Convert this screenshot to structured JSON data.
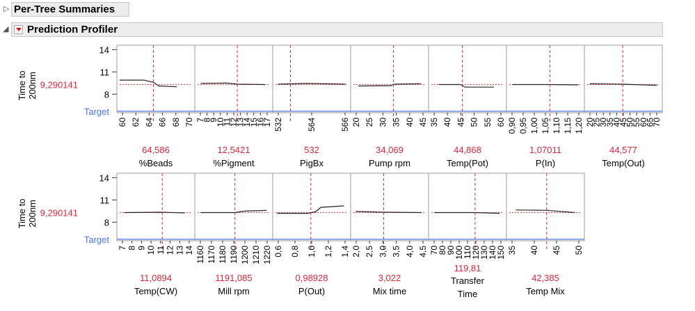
{
  "outlines": {
    "per_tree": {
      "title": "Per-Tree Summaries",
      "state": "collapsed"
    },
    "profiler": {
      "title": "Prediction Profiler",
      "state": "expanded"
    }
  },
  "colors": {
    "red": "#d8253a",
    "target": "#4a73e8",
    "curve": "#222222",
    "frame": "#9a9a9a"
  },
  "response": {
    "label_line1": "Time to",
    "label_line2": "200nm",
    "value": "9,290141",
    "y_ticks": [
      "14",
      "11",
      "8"
    ],
    "y_values": [
      14,
      11,
      8
    ],
    "y_range": [
      5.5,
      14.6
    ],
    "current_y": 9.29,
    "target_label": "Target",
    "target_y": 5.7
  },
  "rows": [
    {
      "factors": [
        {
          "name": "%Beads",
          "value": "64,586",
          "ticks": [
            "60",
            "62",
            "64",
            "66",
            "68",
            "70"
          ],
          "range": [
            59,
            71
          ],
          "current": 64.586,
          "curve": [
            [
              59,
              9.9
            ],
            [
              61.5,
              9.9
            ],
            [
              63,
              9.9
            ],
            [
              64.6,
              9.6
            ],
            [
              65.5,
              9.1
            ],
            [
              68.5,
              9.0
            ]
          ]
        },
        {
          "name": "%Pigment",
          "value": "12,5421",
          "ticks": [
            "7",
            "8",
            "9",
            "10",
            "11",
            "12",
            "13",
            "14",
            "15",
            "16",
            "17"
          ],
          "range": [
            6.5,
            17.5
          ],
          "current": 12.5421,
          "curve": [
            [
              7,
              9.45
            ],
            [
              11,
              9.5
            ],
            [
              12.6,
              9.35
            ],
            [
              16.8,
              9.3
            ]
          ]
        },
        {
          "name": "PigBx",
          "value": "532",
          "ticks": [
            "532",
            "564",
            "566"
          ],
          "range": [
            520,
            578
          ],
          "current": 532,
          "curve": [
            [
              522,
              9.35
            ],
            [
              545,
              9.45
            ],
            [
              576,
              9.35
            ]
          ]
        },
        {
          "name": "Pump rpm",
          "value": "34,069",
          "ticks": [
            "20",
            "25",
            "30",
            "35",
            "40",
            "45"
          ],
          "range": [
            18,
            47
          ],
          "current": 34.069,
          "curve": [
            [
              20,
              9.1
            ],
            [
              33,
              9.15
            ],
            [
              34.2,
              9.35
            ],
            [
              45,
              9.4
            ]
          ]
        },
        {
          "name": "Temp(Pot)",
          "value": "44,868",
          "ticks": [
            "35",
            "40",
            "45",
            "50",
            "55",
            "60"
          ],
          "range": [
            32,
            62
          ],
          "current": 44.868,
          "curve": [
            [
              35,
              9.3
            ],
            [
              44,
              9.3
            ],
            [
              46,
              8.95
            ],
            [
              58,
              8.95
            ]
          ]
        },
        {
          "name": "P(In)",
          "value": "1,07011",
          "ticks": [
            "0,90",
            "0,95",
            "1,00",
            "1,05",
            "1,10",
            "1,15",
            "1,20"
          ],
          "range": [
            0.885,
            1.215
          ],
          "current": 1.07011,
          "curve": [
            [
              0.9,
              9.3
            ],
            [
              1.07,
              9.3
            ],
            [
              1.2,
              9.25
            ]
          ]
        },
        {
          "name": "Temp(Out)",
          "value": "44,577",
          "ticks": [
            "20",
            "25",
            "30",
            "35",
            "40",
            "45",
            "50",
            "55",
            "60",
            "65",
            "70"
          ],
          "range": [
            18,
            72
          ],
          "current": 44.577,
          "curve": [
            [
              20,
              9.4
            ],
            [
              45,
              9.35
            ],
            [
              70,
              9.2
            ]
          ]
        }
      ]
    },
    {
      "factors": [
        {
          "name": "Temp(CW)",
          "value": "11,0894",
          "ticks": [
            "7",
            "8",
            "9",
            "10",
            "11",
            "12",
            "13",
            "14"
          ],
          "range": [
            6.5,
            14.3
          ],
          "current": 11.0894,
          "curve": [
            [
              7,
              9.3
            ],
            [
              11,
              9.35
            ],
            [
              13.5,
              9.25
            ]
          ]
        },
        {
          "name": "Mill rpm",
          "value": "1191,085",
          "ticks": [
            "1160",
            "1170",
            "1180",
            "1190",
            "1200",
            "1210",
            "1220"
          ],
          "range": [
            1157,
            1223
          ],
          "current": 1191.085,
          "curve": [
            [
              1160,
              9.3
            ],
            [
              1191,
              9.3
            ],
            [
              1200,
              9.5
            ],
            [
              1220,
              9.6
            ]
          ]
        },
        {
          "name": "P(Out)",
          "value": "0,98928",
          "ticks": [
            "0,6",
            "0,8",
            "1,0",
            "1,2",
            "1,4"
          ],
          "range": [
            0.53,
            1.47
          ],
          "current": 0.98928,
          "curve": [
            [
              0.55,
              9.2
            ],
            [
              0.95,
              9.2
            ],
            [
              1.05,
              9.4
            ],
            [
              1.12,
              10.0
            ],
            [
              1.42,
              10.2
            ]
          ]
        },
        {
          "name": "Mix time",
          "value": "3,022",
          "ticks": [
            "2,0",
            "2,5",
            "3,0",
            "3,5",
            "4,0",
            "4,5"
          ],
          "range": [
            1.92,
            4.55
          ],
          "current": 3.022,
          "curve": [
            [
              2.0,
              9.45
            ],
            [
              3.0,
              9.35
            ],
            [
              4.4,
              9.3
            ]
          ]
        },
        {
          "name": "Transfer Time",
          "value": "119,81",
          "ticks": [
            "70",
            "80",
            "90",
            "100",
            "110",
            "120",
            "130",
            "140",
            "150"
          ],
          "range": [
            66,
            155
          ],
          "current": 119.81,
          "curve": [
            [
              70,
              9.3
            ],
            [
              120,
              9.3
            ],
            [
              150,
              9.2
            ]
          ]
        },
        {
          "name": "Temp Mix",
          "value": "42,385",
          "ticks": [
            "35",
            "40",
            "45",
            "50"
          ],
          "range": [
            31,
            53
          ],
          "current": 42.385,
          "curve": [
            [
              33,
              9.65
            ],
            [
              42.4,
              9.6
            ],
            [
              51,
              9.3
            ]
          ]
        }
      ]
    }
  ]
}
